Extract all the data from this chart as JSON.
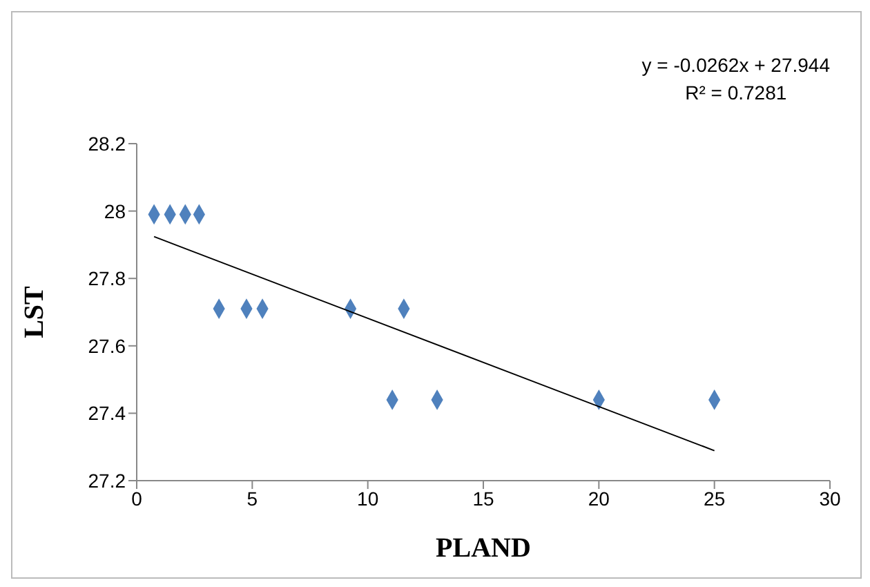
{
  "chart_data": {
    "type": "scatter",
    "xlabel": "PLAND",
    "ylabel": "LST",
    "marker": "diamond",
    "grid": false,
    "xlim": [
      0,
      30
    ],
    "xticks": [
      0,
      5,
      10,
      15,
      20,
      25,
      30
    ],
    "ylim": [
      27.2,
      28.2
    ],
    "yticks": [
      27.2,
      27.4,
      27.6,
      27.8,
      28,
      28.2
    ],
    "annotations": [
      "y = -0.0262x + 27.944",
      "R² = 0.7281"
    ],
    "series": [
      {
        "color": "#4f81bd",
        "x": [
          0.75,
          1.44,
          2.1,
          2.7,
          3.56,
          4.75,
          5.44,
          9.25,
          11.56,
          11.06,
          13,
          20,
          25
        ],
        "values": [
          27.99,
          27.99,
          27.99,
          27.99,
          27.71,
          27.71,
          27.71,
          27.71,
          27.71,
          27.44,
          27.44,
          27.44,
          27.44
        ]
      },
      {
        "type": "line",
        "color": "#000000",
        "marker": "none",
        "x": [
          0.75,
          25
        ],
        "values": [
          27.924,
          27.289
        ]
      }
    ]
  }
}
